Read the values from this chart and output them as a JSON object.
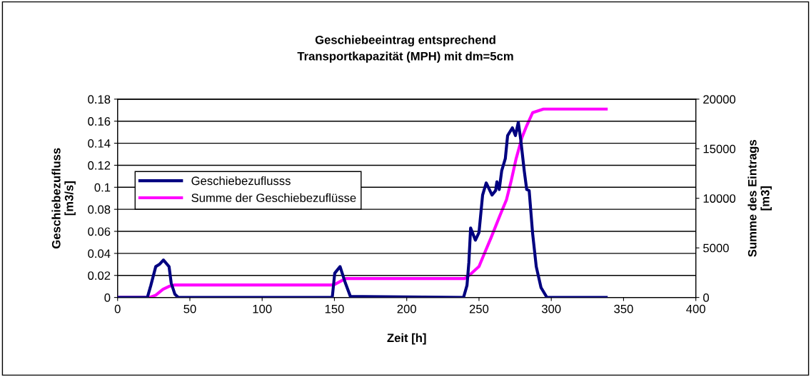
{
  "chart_data": {
    "type": "line",
    "title": "Geschiebeeintrag entsprechend\nTransportkapazität (MPH) mit dm=5cm",
    "xlabel": "Zeit [h]",
    "ylabel": "Geschiebezufluss\n[m3/s]",
    "y2label": "Summe des Eintrags\n[m3]",
    "xlim": [
      0,
      400
    ],
    "xticks": [
      0,
      50,
      100,
      150,
      200,
      250,
      300,
      350,
      400
    ],
    "ylim": [
      0,
      0.18
    ],
    "yticks": [
      0,
      0.02,
      0.04,
      0.06,
      0.08,
      0.1,
      0.12,
      0.14,
      0.16,
      0.18
    ],
    "y2lim": [
      0,
      20000
    ],
    "y2ticks": [
      0,
      5000,
      10000,
      15000,
      20000
    ],
    "grid": "y",
    "legend": "center left",
    "marker": "none",
    "line_style": "solid",
    "series": [
      {
        "name": "Geschiebezuflusss",
        "color": "#000080",
        "x": [
          0,
          20.6,
          23,
          26.4,
          28.9,
          31.7,
          35.6,
          37.1,
          39.6,
          42,
          148.5,
          150.2,
          153.9,
          157.6,
          161,
          239.3,
          241.7,
          243,
          244.2,
          247.5,
          250,
          252.5,
          255,
          259,
          261.5,
          262.4,
          264,
          265.7,
          268.2,
          269.8,
          273.1,
          275.2,
          277.2,
          278.9,
          281.3,
          283,
          284.7,
          287.1,
          289.6,
          292.9,
          297,
          338
        ],
        "values": [
          0,
          0,
          0.011,
          0.028,
          0.03,
          0.034,
          0.028,
          0.013,
          0.003,
          0,
          0,
          0.022,
          0.028,
          0.013,
          0.001,
          0,
          0.011,
          0.032,
          0.063,
          0.052,
          0.059,
          0.093,
          0.104,
          0.093,
          0.097,
          0.105,
          0.098,
          0.115,
          0.126,
          0.147,
          0.154,
          0.147,
          0.159,
          0.143,
          0.115,
          0.098,
          0.097,
          0.058,
          0.028,
          0.009,
          0,
          0
        ]
      },
      {
        "name": "Summe der Geschiebezuflüsse",
        "color": "#ff00ff",
        "axis": "y2",
        "x": [
          0,
          22,
          26.4,
          31.4,
          35.6,
          39.6,
          149.4,
          157.8,
          240,
          242.6,
          250,
          254.1,
          258.3,
          264.9,
          269,
          272.3,
          275.6,
          279.7,
          283,
          287.1,
          294.6,
          338
        ],
        "values": [
          0,
          0,
          230,
          830,
          1120,
          1260,
          1260,
          1900,
          1900,
          2150,
          3120,
          4560,
          6010,
          8410,
          9860,
          11780,
          13950,
          16120,
          17320,
          18640,
          19000,
          19000
        ]
      }
    ]
  }
}
